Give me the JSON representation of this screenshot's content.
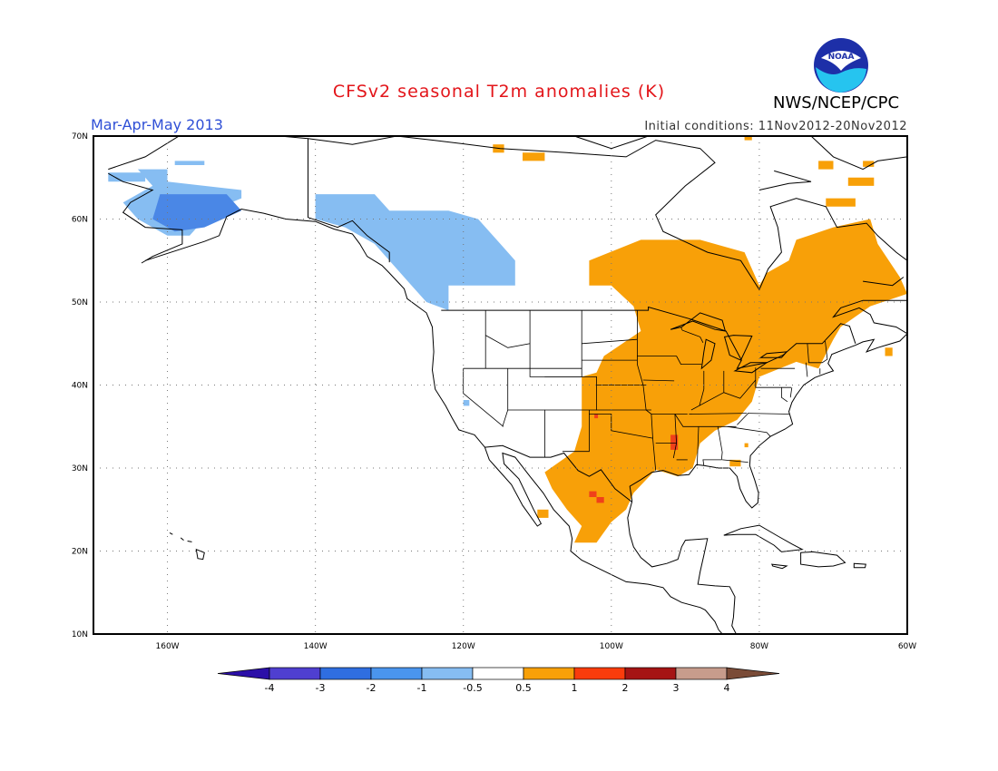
{
  "title": "CFSv2 seasonal T2m anomalies (K)",
  "season": "Mar-Apr-May 2013",
  "initial_conditions": "Initial conditions: 11Nov2012-20Nov2012",
  "agency": "NWS/NCEP/CPC",
  "logo_text": "NOAA",
  "map": {
    "lat_labels": [
      "70N",
      "60N",
      "50N",
      "40N",
      "30N",
      "20N",
      "10N"
    ],
    "lon_labels": [
      "160W",
      "140W",
      "120W",
      "100W",
      "80W",
      "60W"
    ],
    "lon_range": [
      -170,
      -60
    ],
    "lat_range": [
      10,
      70
    ]
  },
  "colorbar": {
    "labels": [
      "-4",
      "-3",
      "-2",
      "-1",
      "-0.5",
      "0.5",
      "1",
      "2",
      "3",
      "4"
    ],
    "colors": [
      "#2b0fa8",
      "#4f3fd0",
      "#2f6ee0",
      "#4a95ee",
      "#86bdf2",
      "#ffffff",
      "#f8a008",
      "#fa3c0c",
      "#a51414",
      "#c79c8c",
      "#7a4b37"
    ]
  },
  "colors": {
    "positive_weak": "#f8a008",
    "positive_strong": "#f0401a",
    "negative_weak": "#86bdf2",
    "negative_strong": "#4a87e6"
  }
}
